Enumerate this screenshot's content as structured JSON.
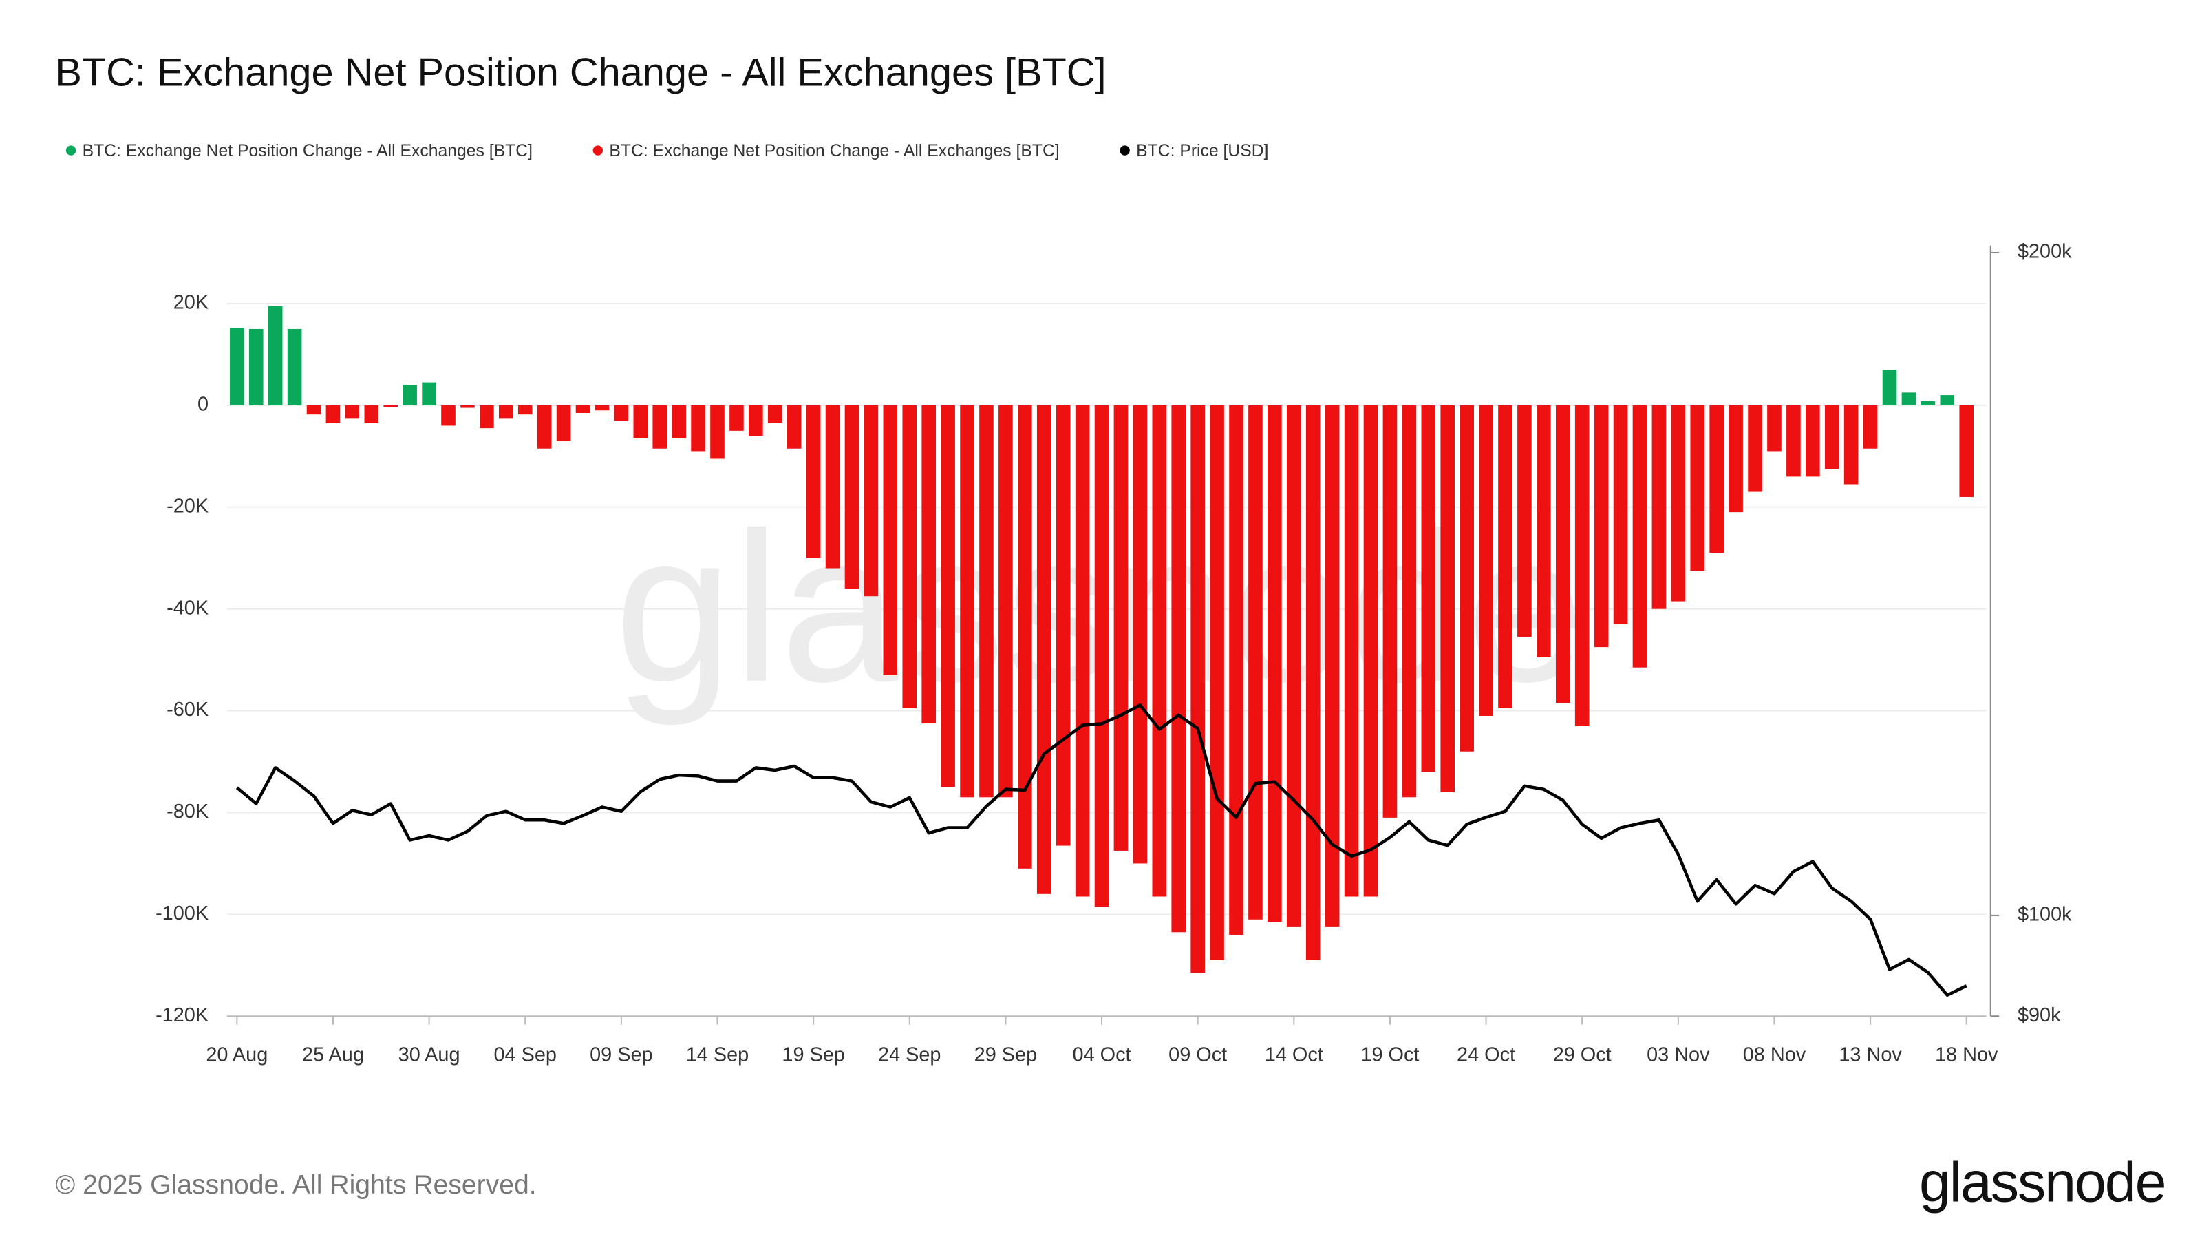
{
  "chart_data": {
    "type": "bar",
    "title": "BTC: Exchange Net Position Change - All Exchanges [BTC]",
    "categories": [
      "20 Aug",
      null,
      null,
      null,
      null,
      "25 Aug",
      null,
      null,
      null,
      null,
      "30 Aug",
      null,
      null,
      null,
      null,
      "04 Sep",
      null,
      null,
      null,
      null,
      "09 Sep",
      null,
      null,
      null,
      null,
      "14 Sep",
      null,
      null,
      null,
      null,
      "19 Sep",
      null,
      null,
      null,
      null,
      "24 Sep",
      null,
      null,
      null,
      null,
      "29 Sep",
      null,
      null,
      null,
      null,
      "04 Oct",
      null,
      null,
      null,
      null,
      "09 Oct",
      null,
      null,
      null,
      null,
      "14 Oct",
      null,
      null,
      null,
      null,
      "19 Oct",
      null,
      null,
      null,
      null,
      "24 Oct",
      null,
      null,
      null,
      null,
      "29 Oct",
      null,
      null,
      null,
      null,
      "03 Nov",
      null,
      null,
      null,
      null,
      "08 Nov",
      null,
      null,
      null,
      null,
      "13 Nov",
      null,
      null,
      null,
      null,
      "18 Nov"
    ],
    "series": [
      {
        "name": "BTC: Exchange Net Position Change - All Exchanges [BTC]",
        "color": "#0aa85a",
        "values": [
          15200,
          15000,
          19500,
          15000,
          null,
          null,
          null,
          null,
          null,
          4000,
          4500,
          null,
          null,
          null,
          null,
          null,
          null,
          null,
          null,
          null,
          null,
          null,
          null,
          null,
          null,
          null,
          null,
          null,
          null,
          null,
          null,
          null,
          null,
          null,
          null,
          null,
          null,
          null,
          null,
          null,
          null,
          null,
          null,
          null,
          null,
          null,
          null,
          null,
          null,
          null,
          null,
          null,
          null,
          null,
          null,
          null,
          null,
          null,
          null,
          null,
          null,
          null,
          null,
          null,
          null,
          null,
          null,
          null,
          null,
          null,
          null,
          null,
          null,
          null,
          null,
          null,
          null,
          null,
          null,
          null,
          null,
          null,
          null,
          null,
          null,
          null,
          7000,
          2500,
          800,
          2000,
          null
        ]
      },
      {
        "name": "BTC: Exchange Net Position Change - All Exchanges [BTC]",
        "color": "#ee1111",
        "values": [
          null,
          null,
          null,
          null,
          -1800,
          -3500,
          -2500,
          -3500,
          -300,
          null,
          null,
          -4000,
          -500,
          -4500,
          -2500,
          -1800,
          -8500,
          -7000,
          -1500,
          -1000,
          -3000,
          -6500,
          -8500,
          -6500,
          -9000,
          -10500,
          -5000,
          -6000,
          -3500,
          -8500,
          -30000,
          -32000,
          -36000,
          -37500,
          -53000,
          -59500,
          -62500,
          -75000,
          -77000,
          -77000,
          -77000,
          -91000,
          -96000,
          -86500,
          -96500,
          -98500,
          -87500,
          -90000,
          -96500,
          -103500,
          -111500,
          -109000,
          -104000,
          -101000,
          -101500,
          -102500,
          -109000,
          -102500,
          -96500,
          -96500,
          -81000,
          -77000,
          -72000,
          -76000,
          -68000,
          -61000,
          -59500,
          -45500,
          -49500,
          -58500,
          -63000,
          -47500,
          -43000,
          -51500,
          -40000,
          -38500,
          -32500,
          -29000,
          -21000,
          -17000,
          -9000,
          -14000,
          -14000,
          -12500,
          -15500,
          -8500,
          null,
          null,
          null,
          null,
          -18000
        ]
      },
      {
        "name": "BTC: Price [USD]",
        "color": "#000000",
        "axis": "y2",
        "type": "line",
        "values": [
          114300,
          112400,
          116700,
          115100,
          113300,
          110100,
          111600,
          111100,
          112400,
          108200,
          108700,
          108200,
          109200,
          111000,
          111500,
          110500,
          110500,
          110100,
          111000,
          112000,
          111500,
          113800,
          115300,
          115800,
          115700,
          115100,
          115100,
          116700,
          116400,
          116900,
          115500,
          115500,
          115100,
          112600,
          112000,
          113100,
          109000,
          109600,
          109600,
          112100,
          114100,
          114000,
          118400,
          120200,
          122000,
          122200,
          123300,
          124600,
          121500,
          123300,
          121600,
          113000,
          110800,
          114800,
          115000,
          112800,
          110500,
          107700,
          106400,
          107100,
          108500,
          110300,
          108200,
          107600,
          110000,
          110800,
          111500,
          114500,
          114100,
          112800,
          110000,
          108400,
          109600,
          110100,
          110500,
          106600,
          101500,
          103800,
          101200,
          103200,
          102300,
          104700,
          105800,
          102900,
          101500,
          99600,
          94500,
          95500,
          94200,
          92000,
          92900
        ]
      }
    ],
    "ylim": [
      -120000,
      30000
    ],
    "yticks": [
      {
        "value": 20000,
        "label": "20K"
      },
      0,
      {
        "value": -20000,
        "label": "-20K"
      },
      {
        "value": -40000,
        "label": "-40K"
      },
      {
        "value": -60000,
        "label": "-60K"
      },
      {
        "value": -80000,
        "label": "-80K"
      },
      {
        "value": -100000,
        "label": "-100K"
      },
      {
        "value": -120000,
        "label": "-120K"
      }
    ],
    "y2lim": [
      90000,
      200000
    ],
    "y2scale": "log",
    "y2ticks": [
      {
        "value": 90000,
        "label": "$90k"
      },
      {
        "value": 100000,
        "label": "$100k"
      },
      {
        "value": 200000,
        "label": "$200k"
      }
    ],
    "grid": true,
    "legend": "top-left",
    "watermark": "glassnode",
    "footer": "© 2025 Glassnode. All Rights Reserved.",
    "logo": "glassnode"
  }
}
